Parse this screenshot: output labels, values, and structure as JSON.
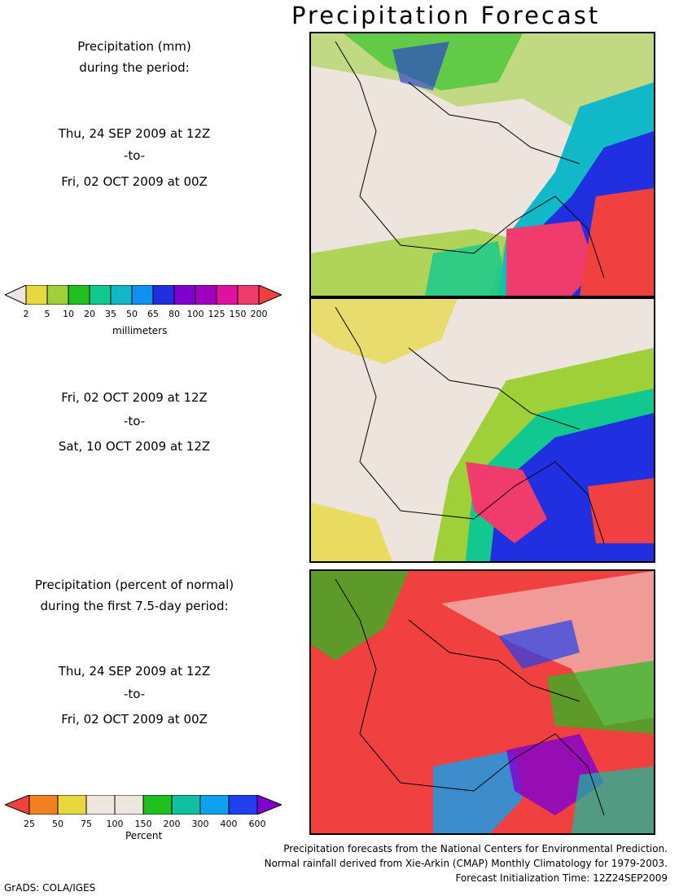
{
  "title": "Precipitation Forecast",
  "panel1": {
    "heading_line1": "Precipitation (mm)",
    "heading_line2": "during the period:",
    "start": "Thu, 24 SEP 2009 at 12Z",
    "to": "-to-",
    "end": "Fri, 02 OCT 2009 at 00Z"
  },
  "panel2": {
    "start": "Fri, 02 OCT 2009 at 12Z",
    "to": "-to-",
    "end": "Sat, 10 OCT 2009 at 12Z"
  },
  "panel3": {
    "heading_line1": "Precipitation (percent of normal)",
    "heading_line2": "during the first 7.5-day period:",
    "start": "Thu, 24 SEP 2009 at 12Z",
    "to": "-to-",
    "end": "Fri, 02 OCT 2009 at 00Z"
  },
  "colorbar_mm": {
    "unit": "millimeters",
    "ticks": [
      "2",
      "5",
      "10",
      "20",
      "35",
      "50",
      "65",
      "80",
      "100",
      "125",
      "150",
      "200"
    ],
    "colors": [
      "#f0e6e0",
      "#e8d840",
      "#a0d038",
      "#20c020",
      "#10c890",
      "#10b8c8",
      "#1090f0",
      "#2030e0",
      "#8000d0",
      "#a000c0",
      "#e010a0",
      "#f03c6c",
      "#f04040"
    ]
  },
  "colorbar_pct": {
    "unit": "Percent",
    "ticks": [
      "25",
      "50",
      "75",
      "100",
      "150",
      "200",
      "300",
      "400",
      "600"
    ],
    "colors": [
      "#f04040",
      "#f08020",
      "#e8d840",
      "#f0e6e0",
      "#f0e6e0",
      "#20c020",
      "#10c0a0",
      "#10a0f0",
      "#2040f0",
      "#8000d0"
    ]
  },
  "credits": {
    "line1": "Precipitation forecasts from the National Centers for Environmental Prediction.",
    "line2": "Normal rainfall derived from Xie-Arkin (CMAP) Monthly Climatology for 1979-2003.",
    "line3": "Forecast Initialization Time: 12Z24SEP2009"
  },
  "software": "GrADS: COLA/IGES"
}
